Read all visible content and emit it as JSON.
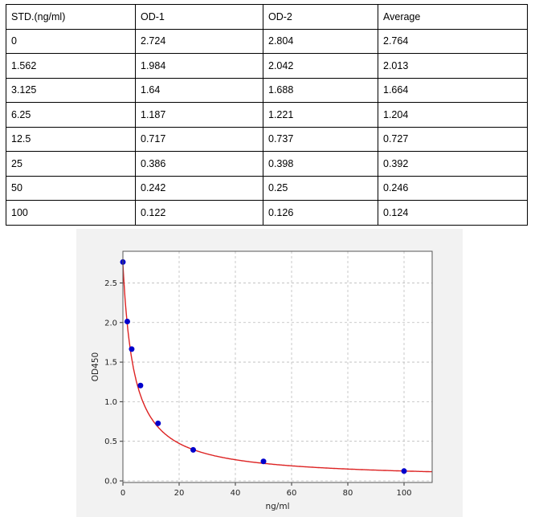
{
  "table": {
    "headers": [
      "STD.(ng/ml)",
      "OD-1",
      "OD-2",
      "Average"
    ],
    "rows": [
      [
        "0",
        "2.724",
        "2.804",
        "2.764"
      ],
      [
        "1.562",
        "1.984",
        "2.042",
        "2.013"
      ],
      [
        "3.125",
        "1.64",
        "1.688",
        "1.664"
      ],
      [
        "6.25",
        "1.187",
        "1.221",
        "1.204"
      ],
      [
        "12.5",
        "0.717",
        "0.737",
        "0.727"
      ],
      [
        "25",
        "0.386",
        "0.398",
        "0.392"
      ],
      [
        "50",
        "0.242",
        "0.25",
        "0.246"
      ],
      [
        "100",
        "0.122",
        "0.126",
        "0.124"
      ]
    ]
  },
  "chart_data": {
    "type": "scatter",
    "xlabel": "ng/ml",
    "ylabel": "OD450",
    "xlim": [
      0,
      110
    ],
    "ylim": [
      -0.02,
      2.9
    ],
    "xticks": [
      "0",
      "20",
      "40",
      "60",
      "80",
      "100"
    ],
    "yticks": [
      "0.0",
      "0.5",
      "1.0",
      "1.5",
      "2.0",
      "2.5"
    ],
    "grid": true,
    "points": {
      "x": [
        0,
        1.562,
        3.125,
        6.25,
        12.5,
        25,
        50,
        100
      ],
      "y": [
        2.764,
        2.013,
        1.664,
        1.204,
        0.727,
        0.392,
        0.246,
        0.124
      ]
    },
    "fit_curve": "red fitted curve through points",
    "colors": {
      "points": "#0000cc",
      "curve": "#dd2222",
      "grid": "#bbbbbb"
    }
  }
}
